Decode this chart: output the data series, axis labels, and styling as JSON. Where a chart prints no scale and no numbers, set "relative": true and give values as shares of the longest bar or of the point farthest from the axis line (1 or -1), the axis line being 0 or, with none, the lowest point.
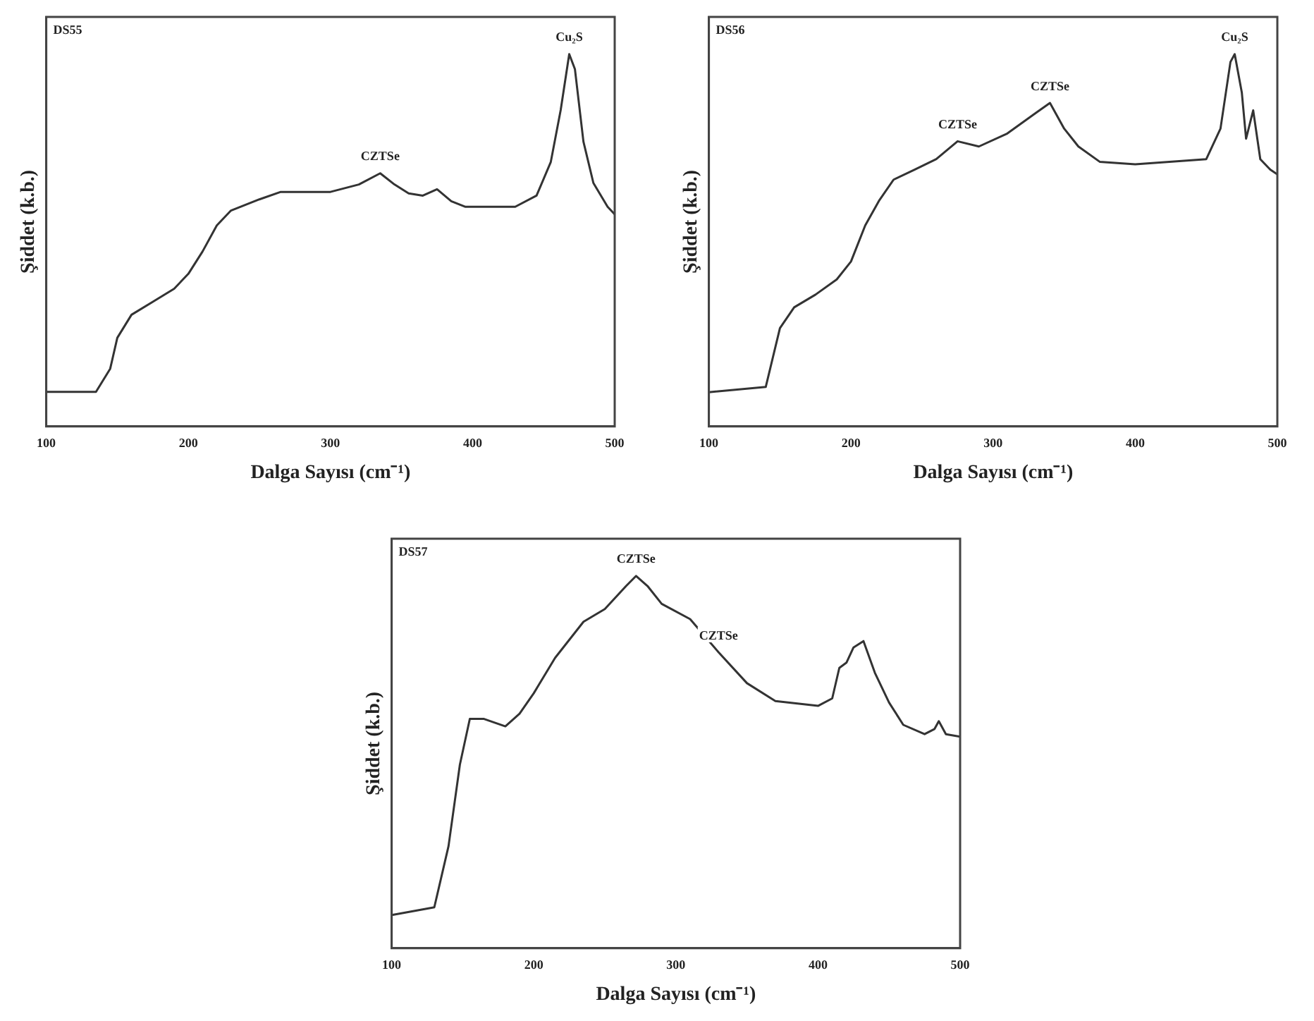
{
  "chart_data": [
    {
      "type": "line",
      "title": "DS55",
      "xlabel": "Dalga Sayısı (cm⁻¹)",
      "ylabel": "Şiddet (k.b.)",
      "relative": true,
      "xlim": [
        100,
        500
      ],
      "xticks": [
        100,
        200,
        300,
        400,
        500
      ],
      "grid": false,
      "legend": false,
      "marker": "none",
      "line_style": "solid",
      "annotations": [
        {
          "text": "CZTSe",
          "x": 335,
          "y": 0.68
        },
        {
          "text": "Cu₂S",
          "x": 468,
          "y": 1.0
        }
      ],
      "series": [
        {
          "color": "#333333",
          "x": [
            100,
            135,
            145,
            150,
            160,
            175,
            190,
            200,
            210,
            220,
            230,
            250,
            265,
            300,
            320,
            335,
            345,
            355,
            365,
            375,
            385,
            395,
            430,
            445,
            455,
            462,
            468,
            472,
            478,
            485,
            495,
            500
          ],
          "values": [
            0.093,
            0.093,
            0.155,
            0.238,
            0.3,
            0.335,
            0.37,
            0.41,
            0.47,
            0.54,
            0.58,
            0.61,
            0.63,
            0.63,
            0.65,
            0.68,
            0.65,
            0.626,
            0.62,
            0.637,
            0.605,
            0.59,
            0.59,
            0.62,
            0.71,
            0.85,
            1.0,
            0.96,
            0.765,
            0.654,
            0.59,
            0.57
          ]
        }
      ]
    },
    {
      "type": "line",
      "title": "DS56",
      "xlabel": "Dalga Sayısı (cm⁻¹)",
      "ylabel": "Şiddet (k.b.)",
      "relative": true,
      "xlim": [
        100,
        500
      ],
      "xticks": [
        100,
        200,
        300,
        400,
        500
      ],
      "grid": false,
      "legend": false,
      "marker": "none",
      "line_style": "solid",
      "annotations": [
        {
          "text": "CZTSe",
          "x": 275,
          "y": 0.766
        },
        {
          "text": "CZTSe",
          "x": 340,
          "y": 0.869
        },
        {
          "text": "Cu₂S",
          "x": 470,
          "y": 1.0
        }
      ],
      "series": [
        {
          "color": "#333333",
          "x": [
            100,
            140,
            150,
            160,
            175,
            190,
            200,
            210,
            220,
            230,
            245,
            260,
            275,
            290,
            310,
            330,
            340,
            350,
            360,
            375,
            400,
            450,
            460,
            467,
            470,
            475,
            478,
            483,
            488,
            495,
            500
          ],
          "values": [
            0.092,
            0.106,
            0.264,
            0.32,
            0.354,
            0.395,
            0.443,
            0.54,
            0.608,
            0.663,
            0.69,
            0.718,
            0.766,
            0.752,
            0.787,
            0.842,
            0.869,
            0.8,
            0.752,
            0.711,
            0.704,
            0.718,
            0.8,
            0.979,
            1.0,
            0.897,
            0.773,
            0.849,
            0.718,
            0.69,
            0.677
          ]
        }
      ]
    },
    {
      "type": "line",
      "title": "DS57",
      "xlabel": "Dalga Sayısı (cm⁻¹)",
      "ylabel": "Şiddet (k.b.)",
      "relative": true,
      "xlim": [
        100,
        500
      ],
      "xticks": [
        100,
        200,
        300,
        400,
        500
      ],
      "grid": false,
      "legend": false,
      "marker": "none",
      "line_style": "solid",
      "annotations": [
        {
          "text": "CZTSe",
          "x": 272,
          "y": 1.0
        },
        {
          "text": "CZTSe",
          "x": 330,
          "y": 0.795
        }
      ],
      "series": [
        {
          "color": "#333333",
          "x": [
            100,
            130,
            140,
            148,
            155,
            165,
            180,
            190,
            200,
            215,
            235,
            250,
            265,
            272,
            280,
            290,
            310,
            330,
            350,
            370,
            400,
            410,
            415,
            420,
            425,
            432,
            440,
            450,
            460,
            475,
            482,
            485,
            490,
            500
          ],
          "values": [
            0.089,
            0.11,
            0.274,
            0.493,
            0.616,
            0.616,
            0.596,
            0.63,
            0.685,
            0.78,
            0.877,
            0.911,
            0.973,
            1.0,
            0.973,
            0.925,
            0.884,
            0.795,
            0.712,
            0.664,
            0.651,
            0.671,
            0.753,
            0.767,
            0.808,
            0.825,
            0.74,
            0.66,
            0.6,
            0.575,
            0.589,
            0.61,
            0.575,
            0.568
          ]
        }
      ]
    }
  ]
}
